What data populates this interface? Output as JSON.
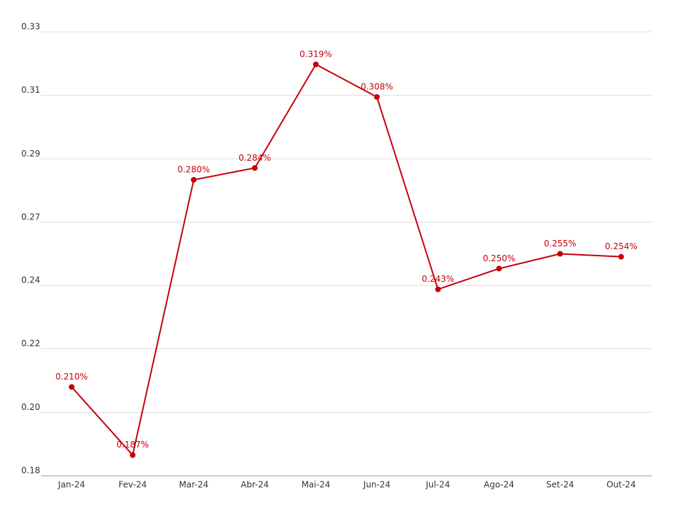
{
  "chart_data": {
    "type": "line",
    "categories": [
      "Jan-24",
      "Fev-24",
      "Mar-24",
      "Abr-24",
      "Mai-24",
      "Jun-24",
      "Jul-24",
      "Ago-24",
      "Set-24",
      "Out-24"
    ],
    "series": [
      {
        "color": "#c4000b",
        "values": [
          0.21,
          0.187,
          0.28,
          0.284,
          0.319,
          0.308,
          0.243,
          0.25,
          0.255,
          0.254
        ],
        "value_labels": [
          "0.210%",
          "0.187%",
          "0.280%",
          "0.284%",
          "0.319%",
          "0.308%",
          "0.243%",
          "0.250%",
          "0.255%",
          "0.254%"
        ]
      }
    ],
    "ylim": [
      0.18,
      0.33
    ],
    "yticks": [
      {
        "value": 0.18,
        "label": "0.18"
      },
      {
        "value": 0.2014,
        "label": "0.20"
      },
      {
        "value": 0.2229,
        "label": "0.22"
      },
      {
        "value": 0.2443,
        "label": "0.24"
      },
      {
        "value": 0.2657,
        "label": "0.27"
      },
      {
        "value": 0.2871,
        "label": "0.29"
      },
      {
        "value": 0.3086,
        "label": "0.31"
      },
      {
        "value": 0.33,
        "label": "0.33"
      }
    ],
    "grid": true
  }
}
